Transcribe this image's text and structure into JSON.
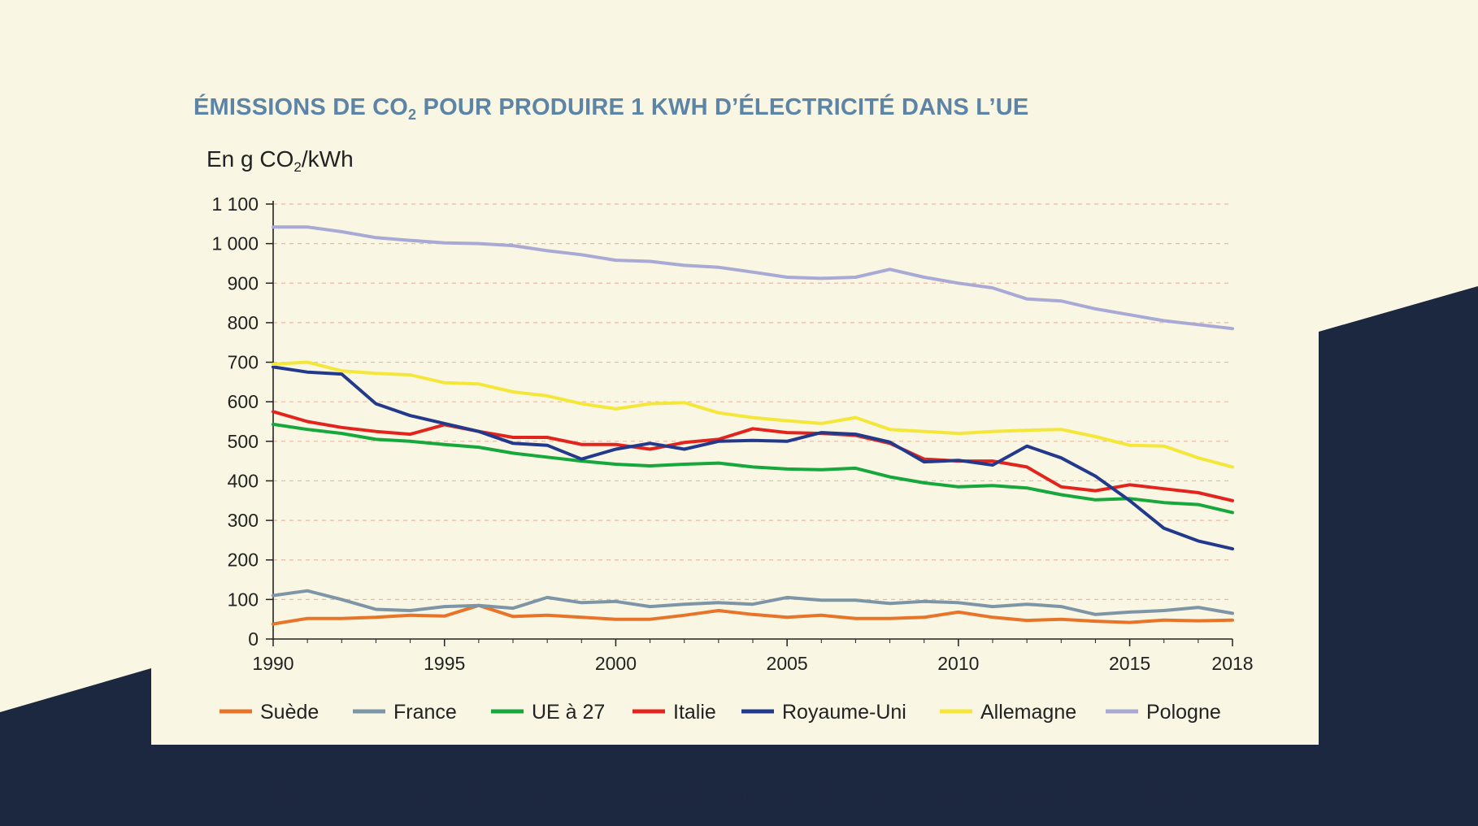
{
  "colors": {
    "background": "#f9f6e3",
    "dark_band": "#1c2740",
    "title": "#5b84a6",
    "grid": "#e9b9a6"
  },
  "title": {
    "pre": "ÉMISSIONS DE CO",
    "sub": "2",
    "post": " POUR PRODUIRE 1 KWH D’ÉLECTRICITÉ DANS L’UE"
  },
  "unit_label": {
    "pre": "En g CO",
    "sub": "2",
    "post": "/kWh"
  },
  "source_url": "https://www.statistiques.developpement-durable.gouv.fr/edition-numerique/chiffres-cles-du-climat/10-emissions-de-ges-de-lindustrie",
  "chart_data": {
    "type": "line",
    "title": "ÉMISSIONS DE CO2 POUR PRODUIRE 1 KWH D’ÉLECTRICITÉ DANS L’UE",
    "ylabel": "En g CO2/kWh",
    "xlabel": "",
    "xlim": [
      1990,
      2018
    ],
    "ylim": [
      0,
      1100
    ],
    "x_tick_labels": [
      "1990",
      "1995",
      "2000",
      "2005",
      "2010",
      "2015",
      "2018"
    ],
    "y_tick_labels": [
      "0",
      "100",
      "200",
      "300",
      "400",
      "500",
      "600",
      "700",
      "800",
      "900",
      "1 000",
      "1 100"
    ],
    "grid": "horizontal dashed",
    "legend_position": "bottom",
    "x": [
      1990,
      1991,
      1992,
      1993,
      1994,
      1995,
      1996,
      1997,
      1998,
      1999,
      2000,
      2001,
      2002,
      2003,
      2004,
      2005,
      2006,
      2007,
      2008,
      2009,
      2010,
      2011,
      2012,
      2013,
      2014,
      2015,
      2016,
      2017,
      2018
    ],
    "series": [
      {
        "name": "Suède",
        "color": "#e8742a",
        "values": [
          38,
          52,
          52,
          55,
          60,
          58,
          85,
          57,
          60,
          55,
          50,
          50,
          60,
          72,
          62,
          55,
          60,
          52,
          52,
          55,
          68,
          55,
          47,
          50,
          45,
          42,
          48,
          46,
          48
        ]
      },
      {
        "name": "France",
        "color": "#7d95a6",
        "values": [
          110,
          122,
          100,
          75,
          72,
          82,
          85,
          78,
          105,
          92,
          95,
          82,
          88,
          92,
          88,
          105,
          98,
          98,
          90,
          95,
          92,
          82,
          88,
          82,
          62,
          68,
          72,
          80,
          65
        ]
      },
      {
        "name": "UE à 27",
        "color": "#16a83c",
        "values": [
          543,
          530,
          520,
          505,
          500,
          492,
          485,
          470,
          460,
          450,
          442,
          438,
          442,
          445,
          435,
          430,
          428,
          432,
          410,
          395,
          385,
          388,
          382,
          365,
          352,
          355,
          345,
          340,
          320
        ]
      },
      {
        "name": "Italie",
        "color": "#e2241d",
        "values": [
          575,
          550,
          535,
          525,
          518,
          542,
          525,
          510,
          510,
          492,
          492,
          480,
          497,
          505,
          532,
          522,
          520,
          515,
          495,
          455,
          450,
          450,
          435,
          385,
          375,
          390,
          380,
          370,
          350
        ]
      },
      {
        "name": "Royaume-Uni",
        "color": "#233a8c",
        "values": [
          688,
          675,
          670,
          595,
          565,
          545,
          525,
          495,
          490,
          455,
          480,
          495,
          480,
          500,
          502,
          500,
          522,
          518,
          498,
          448,
          452,
          440,
          488,
          458,
          412,
          350,
          280,
          248,
          228
        ]
      },
      {
        "name": "Allemagne",
        "color": "#f4e73a",
        "values": [
          695,
          700,
          678,
          672,
          668,
          648,
          645,
          625,
          615,
          595,
          582,
          595,
          598,
          572,
          560,
          552,
          545,
          560,
          530,
          525,
          520,
          525,
          528,
          530,
          512,
          490,
          488,
          458,
          435
        ]
      },
      {
        "name": "Pologne",
        "color": "#a8a9d4",
        "values": [
          1042,
          1042,
          1030,
          1015,
          1008,
          1002,
          1000,
          995,
          982,
          972,
          958,
          955,
          945,
          940,
          928,
          915,
          912,
          915,
          935,
          915,
          900,
          888,
          860,
          855,
          835,
          820,
          805,
          795,
          785
        ]
      }
    ]
  }
}
